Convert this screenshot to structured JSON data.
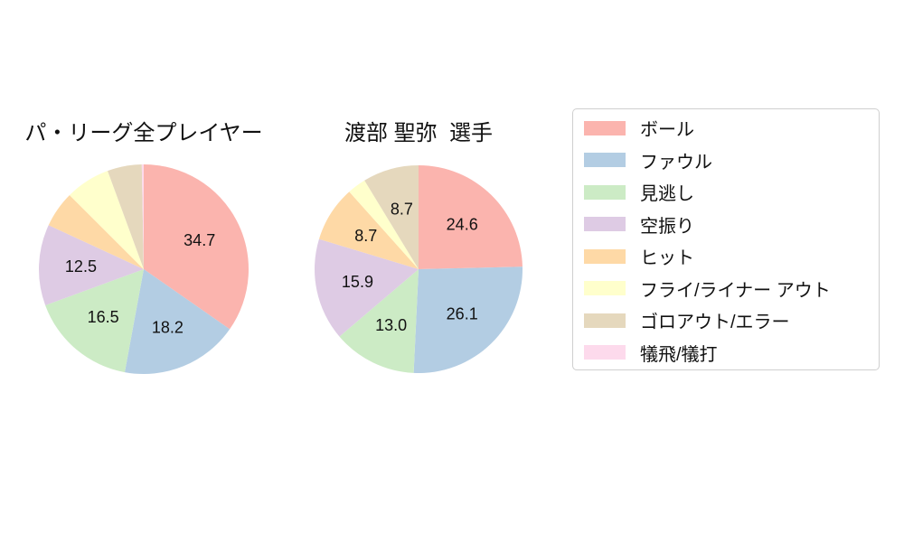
{
  "background_color": "#ffffff",
  "text_color": "#111111",
  "legend": {
    "border_color": "#cfcfcf",
    "items": [
      {
        "label": "ボール",
        "color": "#FBB4AE"
      },
      {
        "label": "ファウル",
        "color": "#B3CDE3"
      },
      {
        "label": "見逃し",
        "color": "#CCEBC5"
      },
      {
        "label": "空振り",
        "color": "#DECBE4"
      },
      {
        "label": "ヒット",
        "color": "#FED9A6"
      },
      {
        "label": "フライ/ライナー アウト",
        "color": "#FFFFCC"
      },
      {
        "label": "ゴロアウト/エラー",
        "color": "#E5D8BD"
      },
      {
        "label": "犠飛/犠打",
        "color": "#FDDAEC"
      }
    ]
  },
  "chart_data": [
    {
      "type": "pie",
      "title": "パ・リーグ全プレイヤー",
      "categories": [
        "ボール",
        "ファウル",
        "見逃し",
        "空振り",
        "ヒット",
        "フライ/ライナー アウト",
        "ゴロアウト/エラー",
        "犠飛/犠打"
      ],
      "values": [
        34.7,
        18.2,
        16.5,
        12.5,
        5.6,
        6.9,
        5.3,
        0.3
      ],
      "slice_labels": [
        "34.7",
        "18.2",
        "16.5",
        "12.5",
        "",
        "",
        "",
        ""
      ],
      "colors": [
        "#FBB4AE",
        "#B3CDE3",
        "#CCEBC5",
        "#DECBE4",
        "#FED9A6",
        "#FFFFCC",
        "#E5D8BD",
        "#FDDAEC"
      ],
      "start_angle": "12-oclock",
      "direction": "clockwise",
      "label_distance": 0.6,
      "legend_position": "right"
    },
    {
      "type": "pie",
      "title": "渡部 聖弥  選手",
      "categories": [
        "ボール",
        "ファウル",
        "見逃し",
        "空振り",
        "ヒット",
        "フライ/ライナー アウト",
        "ゴロアウト/エラー",
        "犠飛/犠打"
      ],
      "values": [
        24.6,
        26.1,
        13.0,
        15.9,
        8.7,
        2.9,
        8.7,
        0.0
      ],
      "slice_labels": [
        "24.6",
        "26.1",
        "13.0",
        "15.9",
        "8.7",
        "",
        "8.7",
        ""
      ],
      "colors": [
        "#FBB4AE",
        "#B3CDE3",
        "#CCEBC5",
        "#DECBE4",
        "#FED9A6",
        "#FFFFCC",
        "#E5D8BD",
        "#FDDAEC"
      ],
      "start_angle": "12-oclock",
      "direction": "clockwise",
      "label_distance": 0.6,
      "legend_position": "right"
    }
  ]
}
